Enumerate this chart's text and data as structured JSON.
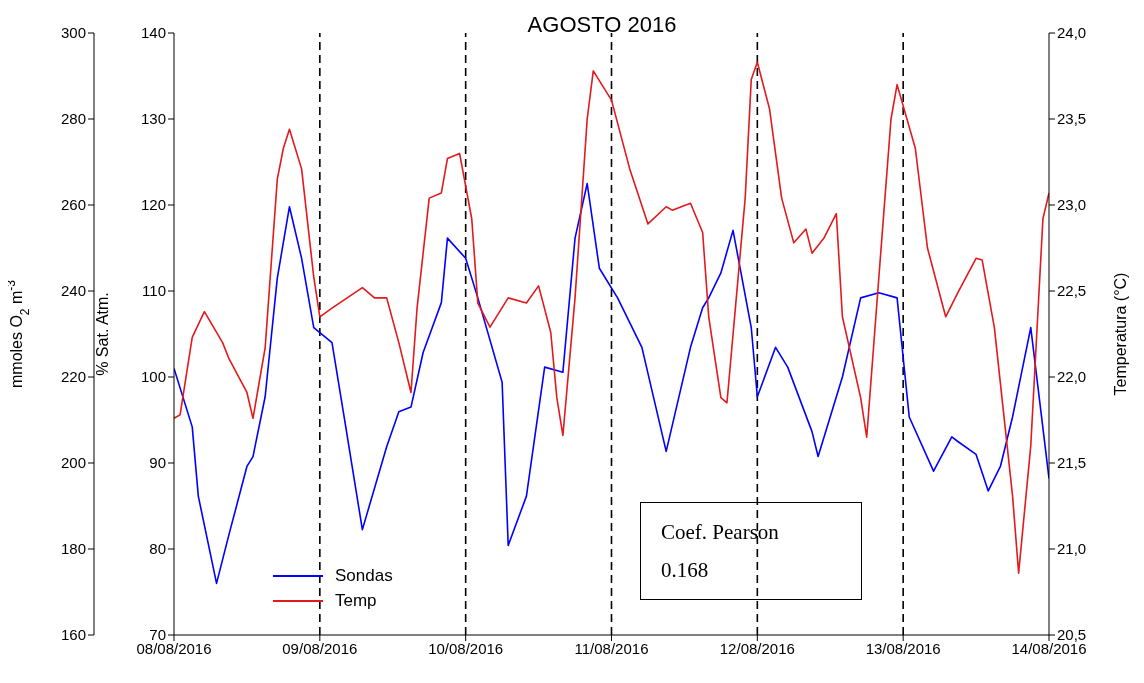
{
  "chart_data": {
    "type": "line",
    "title": "AGOSTO 2016",
    "ylabel": "% Sat. Atm.",
    "ylim": [
      70,
      140
    ],
    "yticks": [
      70,
      80,
      90,
      100,
      110,
      120,
      130,
      140
    ],
    "y3label": "mmoles O$_{2}$ m$^{-3}$",
    "y3lim": [
      160,
      300
    ],
    "y3ticks": [
      160,
      180,
      200,
      220,
      240,
      260,
      280,
      300
    ],
    "y2label": "Temperatura (°C)",
    "y2lim": [
      20.5,
      24.0
    ],
    "y2ticks": [
      {
        "value": 20.5,
        "label": "20,5"
      },
      {
        "value": 21.0,
        "label": "21,0"
      },
      {
        "value": 21.5,
        "label": "21,5"
      },
      {
        "value": 22.0,
        "label": "22,0"
      },
      {
        "value": 22.5,
        "label": "22,5"
      },
      {
        "value": 23.0,
        "label": "23,0"
      },
      {
        "value": 23.5,
        "label": "23,5"
      },
      {
        "value": 24.0,
        "label": "24,0"
      }
    ],
    "xlim": [
      "2016-08-08",
      "2016-08-14"
    ],
    "xticks": [
      {
        "value": "2016-08-08",
        "label": "08/08/2016"
      },
      {
        "value": "2016-08-09",
        "label": "09/08/2016"
      },
      {
        "value": "2016-08-10",
        "label": "10/08/2016"
      },
      {
        "value": "2016-08-11",
        "label": "11/08/2016"
      },
      {
        "value": "2016-08-12",
        "label": "12/08/2016"
      },
      {
        "value": "2016-08-13",
        "label": "13/08/2016"
      },
      {
        "value": "2016-08-14",
        "label": "14/08/2016"
      }
    ],
    "series": [
      {
        "name": "Sondas",
        "color": "#0000ff",
        "axis": "y3",
        "x": [
          "2016-08-08T00:00",
          "2016-08-08T03:00",
          "2016-08-08T04:00",
          "2016-08-08T07:00",
          "2016-08-08T09:00",
          "2016-08-08T12:00",
          "2016-08-08T13:00",
          "2016-08-08T15:00",
          "2016-08-08T17:00",
          "2016-08-08T19:00",
          "2016-08-08T21:00",
          "2016-08-08T23:00",
          "2016-08-09T02:00",
          "2016-08-09T04:00",
          "2016-08-09T07:00",
          "2016-08-09T11:00",
          "2016-08-09T13:00",
          "2016-08-09T15:00",
          "2016-08-09T17:00",
          "2016-08-09T20:00",
          "2016-08-09T21:00",
          "2016-08-10T00:00",
          "2016-08-10T02:00",
          "2016-08-10T06:00",
          "2016-08-10T07:00",
          "2016-08-10T10:00",
          "2016-08-10T13:00",
          "2016-08-10T16:00",
          "2016-08-10T18:00",
          "2016-08-10T20:00",
          "2016-08-10T22:00",
          "2016-08-11T01:00",
          "2016-08-11T05:00",
          "2016-08-11T09:00",
          "2016-08-11T13:00",
          "2016-08-11T15:00",
          "2016-08-11T16:00",
          "2016-08-11T18:00",
          "2016-08-11T20:00",
          "2016-08-11T23:00",
          "2016-08-12T00:00",
          "2016-08-12T03:00",
          "2016-08-12T05:00",
          "2016-08-12T09:00",
          "2016-08-12T10:00",
          "2016-08-12T14:00",
          "2016-08-12T17:00",
          "2016-08-12T20:00",
          "2016-08-12T23:00",
          "2016-08-13T01:00",
          "2016-08-13T05:00",
          "2016-08-13T08:00",
          "2016-08-13T09:00",
          "2016-08-13T12:00",
          "2016-08-13T14:00",
          "2016-08-13T16:00",
          "2016-08-13T18:00",
          "2016-08-13T21:00",
          "2016-08-14T00:00"
        ],
        "values": [
          222,
          208.4,
          192.3,
          172,
          183.1,
          199.2,
          201.5,
          215.4,
          243,
          259.6,
          247.6,
          231.5,
          228,
          210.7,
          184.5,
          203.8,
          211.9,
          213,
          225.7,
          237.3,
          252.3,
          247.6,
          238.4,
          218.8,
          180.8,
          192.3,
          222.3,
          221.1,
          252.3,
          265,
          245.3,
          238.4,
          226.9,
          202.7,
          226.9,
          236.1,
          238.4,
          244.2,
          254.1,
          231.5,
          215.4,
          226.9,
          222.3,
          207.3,
          201.5,
          220,
          238.4,
          239.6,
          238.4,
          210.7,
          198.1,
          206.1,
          205,
          202,
          193.5,
          199.2,
          210.7,
          231.5,
          196.4
        ]
      },
      {
        "name": "Temp",
        "color": "#e31a1c",
        "axis": "y2",
        "x": [
          "2016-08-08T00:00",
          "2016-08-08T01:00",
          "2016-08-08T03:00",
          "2016-08-08T05:00",
          "2016-08-08T08:00",
          "2016-08-08T09:00",
          "2016-08-08T12:00",
          "2016-08-08T13:00",
          "2016-08-08T15:00",
          "2016-08-08T17:00",
          "2016-08-08T18:00",
          "2016-08-08T19:00",
          "2016-08-08T21:00",
          "2016-08-08T23:00",
          "2016-08-09T00:00",
          "2016-08-09T02:00",
          "2016-08-09T07:00",
          "2016-08-09T09:00",
          "2016-08-09T11:00",
          "2016-08-09T13:00",
          "2016-08-09T15:00",
          "2016-08-09T16:00",
          "2016-08-09T18:00",
          "2016-08-09T20:00",
          "2016-08-09T21:00",
          "2016-08-09T23:00",
          "2016-08-10T01:00",
          "2016-08-10T02:00",
          "2016-08-10T04:00",
          "2016-08-10T07:00",
          "2016-08-10T10:00",
          "2016-08-10T12:00",
          "2016-08-10T14:00",
          "2016-08-10T15:00",
          "2016-08-10T16:00",
          "2016-08-10T18:00",
          "2016-08-10T20:00",
          "2016-08-10T21:00",
          "2016-08-11T00:00",
          "2016-08-11T03:00",
          "2016-08-11T06:00",
          "2016-08-11T09:00",
          "2016-08-11T10:00",
          "2016-08-11T13:00",
          "2016-08-11T15:00",
          "2016-08-11T16:00",
          "2016-08-11T18:00",
          "2016-08-11T19:00",
          "2016-08-11T22:00",
          "2016-08-11T23:00",
          "2016-08-12T00:00",
          "2016-08-12T02:00",
          "2016-08-12T04:00",
          "2016-08-12T06:00",
          "2016-08-12T08:00",
          "2016-08-12T09:00",
          "2016-08-12T11:00",
          "2016-08-12T13:00",
          "2016-08-12T14:00",
          "2016-08-12T17:00",
          "2016-08-12T18:00",
          "2016-08-12T20:00",
          "2016-08-12T22:00",
          "2016-08-12T23:00",
          "2016-08-13T02:00",
          "2016-08-13T04:00",
          "2016-08-13T07:00",
          "2016-08-13T09:00",
          "2016-08-13T12:00",
          "2016-08-13T13:00",
          "2016-08-13T15:00",
          "2016-08-13T18:00",
          "2016-08-13T19:00",
          "2016-08-13T21:00",
          "2016-08-13T23:00",
          "2016-08-14T00:00"
        ],
        "values": [
          21.76,
          21.78,
          22.23,
          22.38,
          22.2,
          22.11,
          21.91,
          21.76,
          22.17,
          23.15,
          23.33,
          23.44,
          23.21,
          22.58,
          22.35,
          22.4,
          22.52,
          22.46,
          22.46,
          22.2,
          21.91,
          22.4,
          23.04,
          23.07,
          23.27,
          23.3,
          22.92,
          22.43,
          22.29,
          22.46,
          22.43,
          22.53,
          22.26,
          21.88,
          21.66,
          22.46,
          23.5,
          23.78,
          23.61,
          23.21,
          22.89,
          22.99,
          22.97,
          23.01,
          22.84,
          22.35,
          21.88,
          21.85,
          23.04,
          23.73,
          23.83,
          23.56,
          23.04,
          22.78,
          22.86,
          22.72,
          22.81,
          22.95,
          22.35,
          21.88,
          21.65,
          22.58,
          23.5,
          23.7,
          23.33,
          22.75,
          22.35,
          22.49,
          22.69,
          22.68,
          22.29,
          21.31,
          20.86,
          21.6,
          22.92,
          23.07
        ]
      }
    ],
    "ref_lines": [
      {
        "axis": "x",
        "value": "2016-08-09",
        "color": "#000000",
        "line_style": "dashed"
      },
      {
        "axis": "x",
        "value": "2016-08-10",
        "color": "#000000",
        "line_style": "dashed"
      },
      {
        "axis": "x",
        "value": "2016-08-11",
        "color": "#000000",
        "line_style": "dashed"
      },
      {
        "axis": "x",
        "value": "2016-08-12",
        "color": "#000000",
        "line_style": "dashed"
      },
      {
        "axis": "x",
        "value": "2016-08-13",
        "color": "#000000",
        "line_style": "dashed"
      }
    ],
    "annotations": [
      "Coef. Pearson\n0.168"
    ],
    "legend": "bottom left",
    "grid": false,
    "marker": "none",
    "line_style": "solid"
  }
}
